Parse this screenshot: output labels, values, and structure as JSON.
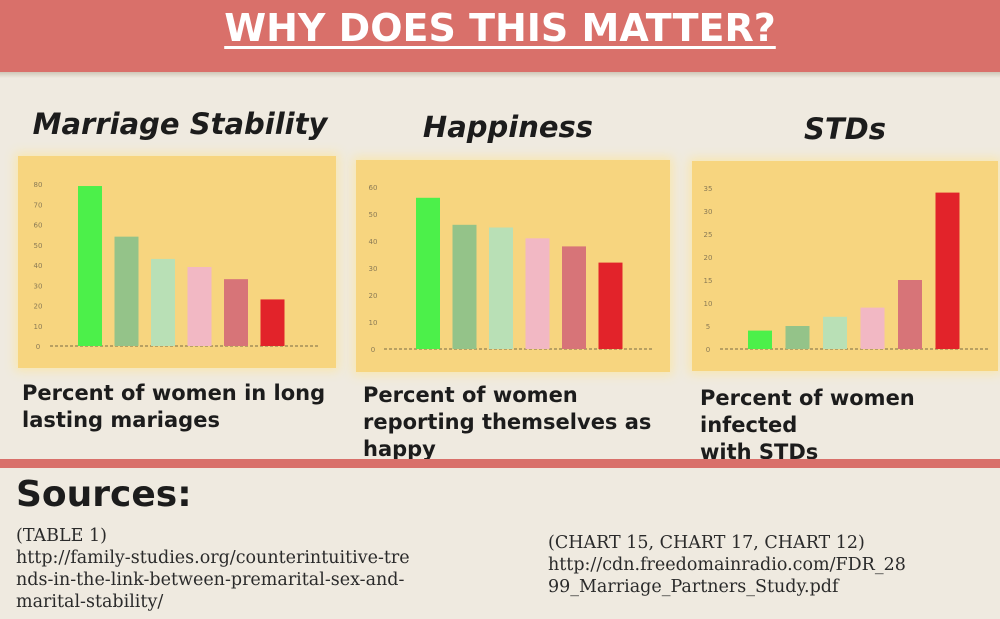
{
  "header": {
    "title": "WHY DOES THIS MATTER?"
  },
  "colors": {
    "banner": "#d9706a",
    "panel": "#f7d57f",
    "bars": [
      "#4cf04a",
      "#94c389",
      "#b9e0b6",
      "#f2b8c4",
      "#d77478",
      "#e2232a"
    ]
  },
  "charts": [
    {
      "title": "Marriage Stability",
      "caption_lines": [
        "Percent of women in long",
        "lasting mariages"
      ]
    },
    {
      "title": "Happiness",
      "caption_lines": [
        "Percent of women",
        "reporting themselves as",
        "happy"
      ]
    },
    {
      "title": "STDs",
      "caption_lines": [
        "Percent of women infected",
        "with STDs"
      ]
    }
  ],
  "chart_data": [
    {
      "type": "bar",
      "title": "Marriage Stability",
      "xlabel": "",
      "ylabel": "",
      "ylim": [
        0,
        80
      ],
      "yticks": [
        "0",
        "10",
        "20",
        "30",
        "40",
        "50",
        "60",
        "70",
        "80"
      ],
      "values": [
        79,
        54,
        43,
        39,
        33,
        23
      ]
    },
    {
      "type": "bar",
      "title": "Happiness",
      "xlabel": "",
      "ylabel": "",
      "ylim": [
        0,
        60
      ],
      "yticks": [
        "0",
        "10",
        "20",
        "30",
        "40",
        "50",
        "60"
      ],
      "values": [
        56,
        46,
        45,
        41,
        38,
        32
      ]
    },
    {
      "type": "bar",
      "title": "STDs",
      "xlabel": "",
      "ylabel": "",
      "ylim": [
        0,
        35
      ],
      "yticks": [
        "0",
        "5",
        "10",
        "15",
        "20",
        "25",
        "30",
        "35"
      ],
      "values": [
        4,
        5,
        7,
        9,
        15,
        34
      ]
    }
  ],
  "sources": {
    "heading": "Sources:",
    "left_lines": [
      "(TABLE 1)",
      "http://family-studies.org/counterintuitive-tre",
      "nds-in-the-link-between-premarital-sex-and-",
      "marital-stability/"
    ],
    "right_lines": [
      "(CHART 15, CHART 17, CHART 12)",
      "http://cdn.freedomainradio.com/FDR_28",
      "99_Marriage_Partners_Study.pdf"
    ]
  }
}
